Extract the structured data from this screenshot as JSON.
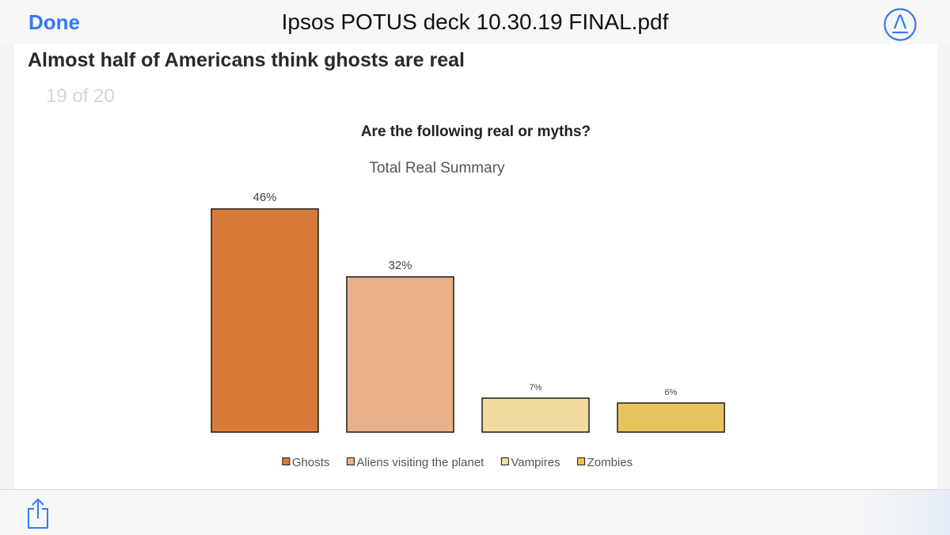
{
  "toolbar": {
    "done_label": "Done",
    "document_title": "Ipsos POTUS deck 10.30.19 FINAL.pdf",
    "accent_color": "#3478f6",
    "markup_icon": "markup-pen-icon",
    "share_icon": "share-icon"
  },
  "page_indicator": "19 of 20",
  "slide": {
    "title": "Almost half of Americans think ghosts are real"
  },
  "chart_data": {
    "type": "bar",
    "title": "Are the following real or myths?",
    "subtitle": "Total Real Summary",
    "categories": [
      "Ghosts",
      "Aliens visiting the planet",
      "Vampires",
      "Zombies"
    ],
    "values": [
      46,
      32,
      7,
      6
    ],
    "value_labels": [
      "46%",
      "32%",
      "7%",
      "6%"
    ],
    "colors": [
      "#d97b38",
      "#e9b189",
      "#f1dba0",
      "#e8c25c"
    ],
    "xlabel": "",
    "ylabel": "",
    "ylim": [
      0,
      46
    ],
    "grid": false,
    "legend": "bottom"
  }
}
